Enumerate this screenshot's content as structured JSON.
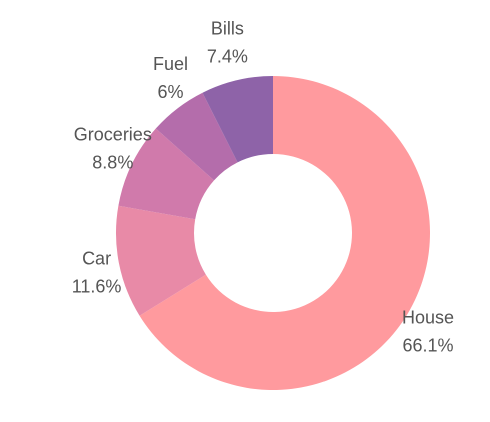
{
  "chart_data": {
    "type": "pie",
    "variant": "donut",
    "title": "",
    "slices": [
      {
        "label": "House",
        "percent_label": "66.1%",
        "value": 66.1,
        "color": "#ff9a9e"
      },
      {
        "label": "Car",
        "percent_label": "11.6%",
        "value": 11.6,
        "color": "#e88aa7"
      },
      {
        "label": "Groceries",
        "percent_label": "8.8%",
        "value": 8.8,
        "color": "#d07aab"
      },
      {
        "label": "Fuel",
        "percent_label": "6%",
        "value": 6.0,
        "color": "#b46dab"
      },
      {
        "label": "Bills",
        "percent_label": "7.4%",
        "value": 7.4,
        "color": "#8e63a8"
      }
    ],
    "start_angle": "top",
    "direction": "clockwise",
    "legend": "none",
    "labels": "outside"
  }
}
